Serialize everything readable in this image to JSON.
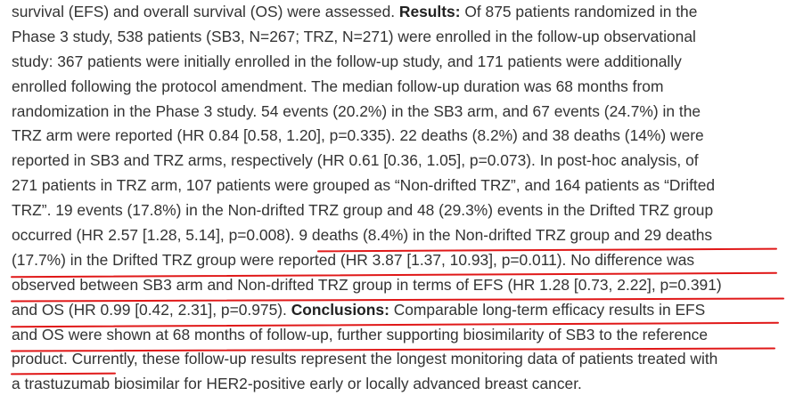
{
  "abstract": {
    "lines": [
      [
        {
          "t": "survival (EFS) and overall survival (OS) were assessed. "
        },
        {
          "t": "Results:",
          "b": true
        },
        {
          "t": " Of 875 patients randomized in the"
        }
      ],
      [
        {
          "t": "Phase 3 study, 538 patients (SB3, N=267; TRZ, N=271) were enrolled in the follow-up observational"
        }
      ],
      [
        {
          "t": "study: 367 patients were initially enrolled in the follow-up study, and 171 patients were additionally"
        }
      ],
      [
        {
          "t": "enrolled following the protocol amendment. The median follow-up duration was 68 months from"
        }
      ],
      [
        {
          "t": "randomization in the Phase 3 study. 54 events (20.2%) in the SB3 arm, and 67 events (24.7%) in the"
        }
      ],
      [
        {
          "t": "TRZ arm were reported (HR 0.84 [0.58, 1.20], p=0.335). 22 deaths (8.2%) and 38 deaths (14%) were"
        }
      ],
      [
        {
          "t": "reported in SB3 and TRZ arms, respectively (HR 0.61 [0.36, 1.05], p=0.073). In post-hoc analysis, of"
        }
      ],
      [
        {
          "t": "271 patients in TRZ arm, 107 patients were grouped as “Non-drifted TRZ”, and 164 patients as “Drifted"
        }
      ],
      [
        {
          "t": "TRZ”. 19 events (17.8%) in the Non-drifted TRZ group and 48 (29.3%) events in the Drifted TRZ group"
        }
      ],
      [
        {
          "t": "occurred (HR 2.57 [1.28, 5.14], p=0.008). 9 deaths (8.4%) in the Non-drifted TRZ group and 29 deaths"
        }
      ],
      [
        {
          "t": "(17.7%) in the Drifted TRZ group were reported (HR 3.87 [1.37, 10.93], p=0.011). No difference was"
        }
      ],
      [
        {
          "t": "observed between SB3 arm and Non-drifted TRZ group in terms of EFS (HR 1.28 [0.73, 2.22], p=0.391)"
        }
      ],
      [
        {
          "t": "and OS (HR 0.99 [0.42, 2.31], p=0.975). "
        },
        {
          "t": "Conclusions:",
          "b": true
        },
        {
          "t": " Comparable long-term efficacy results in EFS"
        }
      ],
      [
        {
          "t": "and OS were shown at 68 months of follow-up, further supporting biosimilarity of SB3 to the reference"
        }
      ],
      [
        {
          "t": "product. Currently, these follow-up results represent the longest monitoring data of patients treated with"
        }
      ],
      [
        {
          "t": "a trastuzumab biosimilar for HER2-positive early or locally advanced breast cancer."
        }
      ]
    ]
  },
  "annotation_color": "#e01818"
}
